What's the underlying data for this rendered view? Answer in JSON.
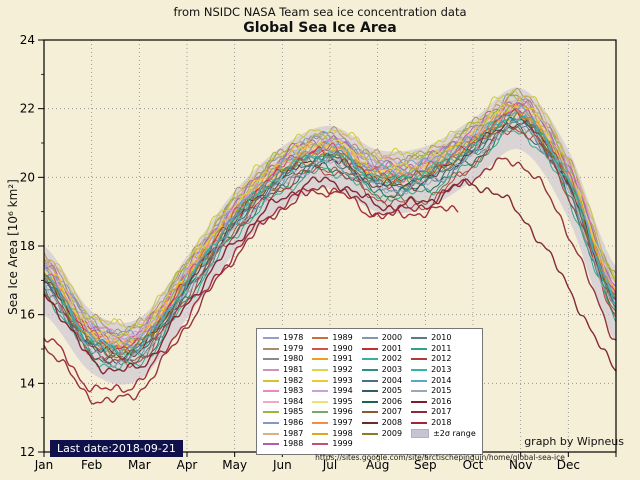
{
  "chart_data": {
    "type": "line",
    "supertitle": "from NSIDC NASA Team sea ice concentration data",
    "title": "Global Sea Ice Area",
    "xlabel": "",
    "ylabel": "Sea Ice Area [10⁶ km²]",
    "ylim": [
      12,
      24
    ],
    "yticks": [
      12,
      14,
      16,
      18,
      20,
      22,
      24
    ],
    "x_months": [
      "Jan",
      "Feb",
      "Mar",
      "Apr",
      "May",
      "Jun",
      "Jul",
      "Aug",
      "Sep",
      "Oct",
      "Nov",
      "Dec"
    ],
    "grid": true,
    "legend_position": "lower center",
    "annotations": {
      "last_date": "Last date:2018-09-21",
      "credit": "graph by Wipneus",
      "url": "https://sites.google.com/site/arctischepinguin/home/global-sea-ice"
    },
    "band": {
      "label": "±2σ range",
      "color": "#c8c3d2",
      "upper": [
        18.0,
        16.1,
        15.9,
        17.7,
        19.6,
        20.9,
        21.5,
        20.8,
        20.9,
        21.7,
        22.6,
        20.8,
        17.4
      ],
      "lower": [
        16.0,
        14.3,
        14.1,
        15.9,
        17.8,
        19.1,
        19.7,
        19.0,
        19.1,
        19.9,
        20.8,
        18.8,
        15.2
      ]
    },
    "series": [
      {
        "name": "1978",
        "color": "#9e9ac8",
        "values": [
          17.5,
          15.7,
          15.5,
          17.3,
          19.2,
          20.5,
          21.1,
          20.4,
          20.5,
          21.3,
          22.2,
          20.3,
          16.8
        ]
      },
      {
        "name": "1979",
        "color": "#b08968",
        "values": [
          17.7,
          15.9,
          15.7,
          17.5,
          19.4,
          20.7,
          21.3,
          20.6,
          20.7,
          21.5,
          22.4,
          20.5,
          17.0
        ]
      },
      {
        "name": "1980",
        "color": "#8a8a8a",
        "values": [
          17.6,
          15.8,
          15.6,
          17.4,
          19.3,
          20.6,
          21.2,
          20.5,
          20.6,
          21.4,
          22.3,
          20.4,
          16.9
        ]
      },
      {
        "name": "1981",
        "color": "#d291bc",
        "values": [
          17.4,
          15.6,
          15.4,
          17.2,
          19.1,
          20.4,
          21.0,
          20.3,
          20.4,
          21.2,
          22.1,
          20.2,
          16.7
        ]
      },
      {
        "name": "1982",
        "color": "#c8c832",
        "values": [
          17.8,
          16.0,
          15.8,
          17.6,
          19.5,
          20.8,
          21.4,
          20.7,
          20.8,
          21.6,
          22.5,
          20.6,
          17.1
        ]
      },
      {
        "name": "1983",
        "color": "#e78ac3",
        "values": [
          17.5,
          15.7,
          15.6,
          17.2,
          19.2,
          20.4,
          21.0,
          20.5,
          20.4,
          21.2,
          22.1,
          20.4,
          16.8
        ]
      },
      {
        "name": "1984",
        "color": "#f4a6c6",
        "values": [
          17.3,
          15.5,
          15.4,
          17.1,
          19.0,
          20.3,
          20.9,
          20.2,
          20.4,
          21.3,
          22.0,
          20.1,
          16.6
        ]
      },
      {
        "name": "1985",
        "color": "#a0b43c",
        "values": [
          17.6,
          15.7,
          15.6,
          17.5,
          19.3,
          20.7,
          21.1,
          20.4,
          20.6,
          21.5,
          22.2,
          20.3,
          16.9
        ]
      },
      {
        "name": "1986",
        "color": "#7a9cc6",
        "values": [
          17.5,
          15.8,
          15.5,
          17.3,
          19.1,
          20.5,
          21.2,
          20.4,
          20.5,
          21.2,
          22.1,
          20.2,
          16.8
        ]
      },
      {
        "name": "1987",
        "color": "#d4b483",
        "values": [
          17.7,
          16.0,
          15.8,
          17.4,
          19.4,
          20.6,
          21.3,
          20.7,
          20.6,
          21.4,
          22.3,
          20.6,
          17.0
        ]
      },
      {
        "name": "1988",
        "color": "#b05fb0",
        "values": [
          17.5,
          15.6,
          15.5,
          17.3,
          19.2,
          20.6,
          21.1,
          20.3,
          20.5,
          21.4,
          22.2,
          20.3,
          16.8
        ]
      },
      {
        "name": "1989",
        "color": "#c87137",
        "values": [
          17.3,
          15.5,
          15.3,
          17.1,
          19.0,
          20.3,
          20.9,
          20.2,
          20.3,
          21.1,
          22.0,
          20.1,
          16.6
        ]
      },
      {
        "name": "1990",
        "color": "#d94f4f",
        "values": [
          17.2,
          15.4,
          15.2,
          17.0,
          18.9,
          20.2,
          20.8,
          20.1,
          20.2,
          21.0,
          21.9,
          20.0,
          16.5
        ]
      },
      {
        "name": "1991",
        "color": "#e8a020",
        "values": [
          17.3,
          15.4,
          15.3,
          17.2,
          19.0,
          20.4,
          20.9,
          20.1,
          20.3,
          21.2,
          22.0,
          20.0,
          16.6
        ]
      },
      {
        "name": "1992",
        "color": "#d8d84a",
        "values": [
          17.4,
          15.6,
          15.5,
          17.2,
          19.1,
          20.4,
          21.0,
          20.3,
          20.4,
          21.2,
          22.1,
          20.2,
          16.7
        ]
      },
      {
        "name": "1993",
        "color": "#f0c830",
        "values": [
          17.4,
          15.5,
          15.4,
          17.3,
          19.1,
          20.5,
          21.0,
          20.2,
          20.4,
          21.3,
          22.1,
          20.1,
          16.7
        ]
      },
      {
        "name": "1994",
        "color": "#c9a0dc",
        "values": [
          17.3,
          15.5,
          15.4,
          17.1,
          19.0,
          20.3,
          20.9,
          20.2,
          20.3,
          21.1,
          21.9,
          20.1,
          16.6
        ]
      },
      {
        "name": "1995",
        "color": "#ede275",
        "values": [
          17.1,
          15.2,
          15.1,
          16.9,
          18.8,
          20.1,
          20.7,
          20.0,
          20.1,
          20.9,
          21.8,
          19.9,
          16.4
        ]
      },
      {
        "name": "1996",
        "color": "#78a86e",
        "values": [
          17.2,
          15.4,
          15.3,
          17.0,
          18.9,
          20.3,
          20.8,
          20.0,
          20.2,
          21.1,
          21.9,
          19.9,
          16.5
        ]
      },
      {
        "name": "1997",
        "color": "#f08c50",
        "values": [
          17.1,
          15.3,
          15.1,
          17.0,
          18.8,
          20.2,
          20.7,
          20.0,
          20.1,
          20.9,
          21.8,
          19.9,
          16.4
        ]
      },
      {
        "name": "1998",
        "color": "#e0a818",
        "values": [
          17.2,
          15.3,
          15.2,
          17.1,
          18.9,
          20.2,
          20.8,
          20.1,
          20.2,
          21.0,
          21.8,
          20.0,
          16.5
        ]
      },
      {
        "name": "1999",
        "color": "#c84b77",
        "values": [
          17.2,
          15.4,
          15.2,
          17.0,
          18.9,
          20.3,
          20.8,
          20.1,
          20.2,
          21.0,
          21.9,
          20.0,
          16.5
        ]
      },
      {
        "name": "2000",
        "color": "#8496a8",
        "values": [
          17.1,
          15.3,
          15.1,
          16.9,
          18.8,
          20.1,
          20.7,
          20.0,
          20.1,
          20.9,
          21.8,
          19.9,
          16.4
        ]
      },
      {
        "name": "2001",
        "color": "#c03030",
        "values": [
          17.1,
          15.2,
          15.1,
          17.0,
          18.8,
          20.2,
          20.7,
          19.9,
          20.1,
          21.0,
          21.8,
          19.8,
          16.4
        ]
      },
      {
        "name": "2002",
        "color": "#3cae9c",
        "values": [
          17.0,
          15.2,
          15.0,
          16.8,
          18.7,
          20.0,
          20.6,
          19.9,
          20.0,
          20.8,
          21.7,
          19.8,
          16.3
        ]
      },
      {
        "name": "2003",
        "color": "#2f8f7f",
        "values": [
          17.1,
          15.3,
          15.1,
          16.9,
          18.8,
          20.1,
          20.7,
          20.0,
          20.1,
          20.9,
          21.7,
          19.9,
          16.4
        ]
      },
      {
        "name": "2004",
        "color": "#4a6d8c",
        "values": [
          17.0,
          15.1,
          15.0,
          16.8,
          18.7,
          20.0,
          20.6,
          19.8,
          20.0,
          20.8,
          21.6,
          19.8,
          16.3
        ]
      },
      {
        "name": "2005",
        "color": "#2b5d6b",
        "values": [
          16.9,
          15.0,
          14.9,
          16.7,
          18.6,
          19.9,
          20.5,
          19.8,
          19.9,
          20.7,
          21.6,
          19.7,
          16.2
        ]
      },
      {
        "name": "2006",
        "color": "#176655",
        "values": [
          16.7,
          14.9,
          14.7,
          16.5,
          18.4,
          19.7,
          20.3,
          19.6,
          19.7,
          20.5,
          21.4,
          19.5,
          16.0
        ]
      },
      {
        "name": "2007",
        "color": "#8a5a2b",
        "values": [
          16.8,
          15.0,
          14.8,
          16.6,
          18.5,
          19.8,
          20.3,
          19.5,
          19.4,
          20.4,
          21.5,
          19.6,
          16.1
        ]
      },
      {
        "name": "2008",
        "color": "#6e2a2a",
        "values": [
          17.0,
          15.1,
          15.0,
          16.8,
          18.7,
          20.0,
          20.5,
          19.8,
          19.9,
          20.8,
          21.6,
          19.8,
          16.3
        ]
      },
      {
        "name": "2009",
        "color": "#8a7a2a",
        "values": [
          17.1,
          15.2,
          15.1,
          16.9,
          18.8,
          20.1,
          20.6,
          19.9,
          20.0,
          20.9,
          21.7,
          19.9,
          16.4
        ]
      },
      {
        "name": "2010",
        "color": "#5a7a8c",
        "values": [
          16.8,
          15.0,
          14.8,
          16.6,
          18.5,
          19.8,
          20.4,
          19.7,
          19.8,
          20.6,
          21.5,
          19.6,
          16.1
        ]
      },
      {
        "name": "2011",
        "color": "#2aa586",
        "values": [
          16.6,
          14.8,
          14.6,
          16.4,
          18.3,
          19.6,
          20.2,
          19.5,
          19.6,
          20.4,
          21.3,
          19.4,
          15.9
        ]
      },
      {
        "name": "2012",
        "color": "#b03a3a",
        "values": [
          16.7,
          14.9,
          14.7,
          16.5,
          18.4,
          19.7,
          20.2,
          19.4,
          19.2,
          20.4,
          21.4,
          19.5,
          16.0
        ]
      },
      {
        "name": "2013",
        "color": "#35b5a5",
        "values": [
          17.1,
          15.2,
          15.1,
          16.9,
          18.8,
          20.1,
          20.7,
          20.0,
          20.2,
          21.0,
          21.8,
          19.9,
          16.4
        ]
      },
      {
        "name": "2014",
        "color": "#58a8c8",
        "values": [
          17.2,
          15.3,
          15.2,
          17.0,
          18.9,
          20.3,
          20.9,
          20.2,
          20.4,
          21.2,
          21.9,
          20.0,
          16.5
        ]
      },
      {
        "name": "2015",
        "color": "#98a8b8",
        "values": [
          16.8,
          14.9,
          14.8,
          16.6,
          18.5,
          19.8,
          20.4,
          19.7,
          19.8,
          20.6,
          21.5,
          19.6,
          16.1
        ]
      },
      {
        "name": "2016",
        "color": "#7a1f2b",
        "values": [
          16.6,
          14.7,
          14.5,
          16.3,
          18.1,
          19.4,
          19.9,
          19.2,
          19.3,
          19.8,
          18.9,
          16.8,
          14.4
        ]
      },
      {
        "name": "2017",
        "color": "#8e2a35",
        "values": [
          15.1,
          13.6,
          13.8,
          15.7,
          17.7,
          19.1,
          19.7,
          19.0,
          19.2,
          20.0,
          20.4,
          18.4,
          15.3
        ]
      },
      {
        "name": "2018",
        "color": "#a02535",
        "values": [
          15.4,
          13.9,
          14.1,
          15.9,
          17.8,
          19.2,
          19.6,
          18.9,
          19.0,
          19.1
        ],
        "end_x": 8.7
      }
    ]
  }
}
